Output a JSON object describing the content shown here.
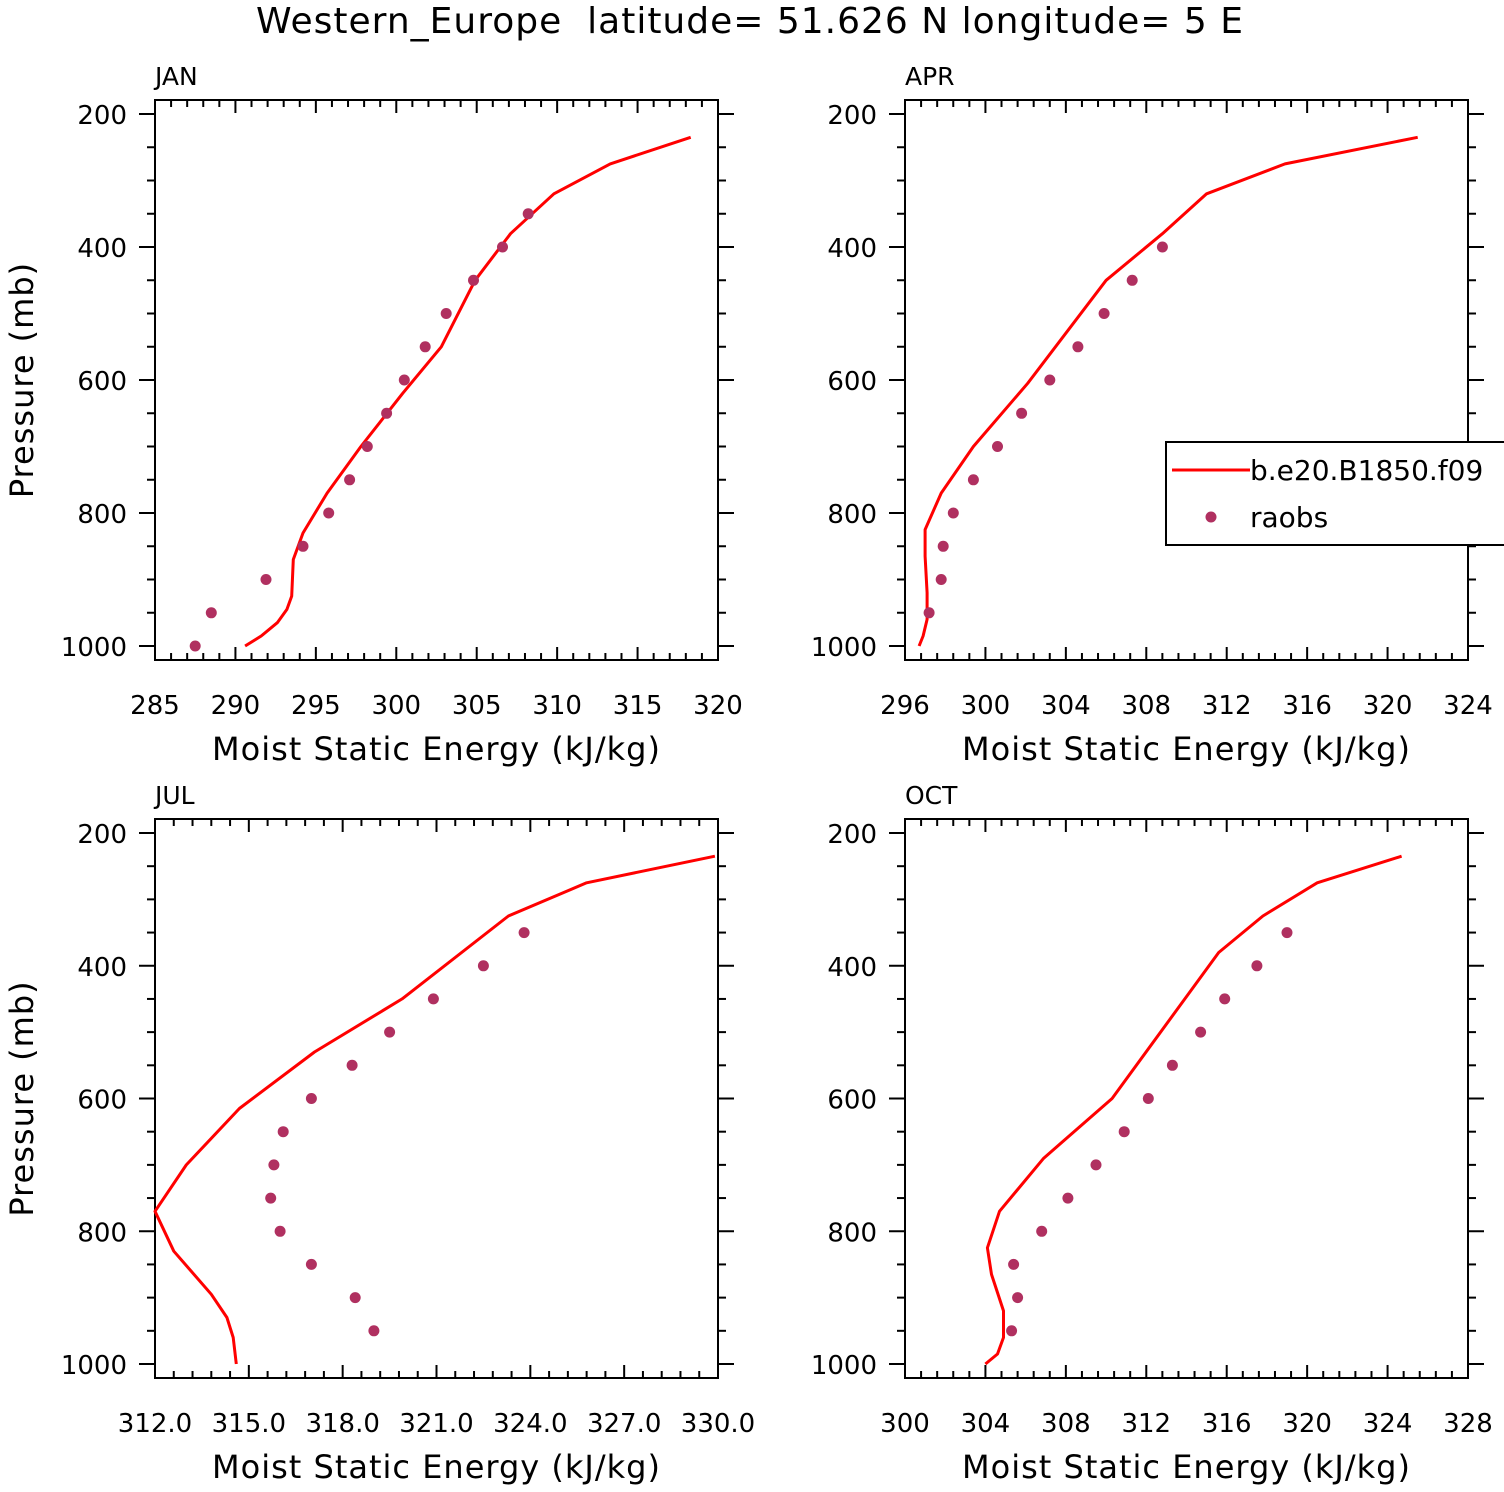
{
  "figure": {
    "title": "Western_Europe  latitude= 51.626 N longitude= 5 E"
  },
  "legend": {
    "model_label": "b.e20.B1850.f09",
    "obs_label": "raobs",
    "model_color": "#ff0000",
    "obs_color": "#b03060"
  },
  "chart_data": [
    {
      "type": "line",
      "panel_title": "JAN",
      "xlabel": "Moist Static Energy (kJ/kg)",
      "ylabel": "Pressure (mb)",
      "xlim": [
        285,
        320
      ],
      "ylim": [
        1000,
        200
      ],
      "y_inverted": true,
      "xticks": [
        "285",
        "290",
        "295",
        "300",
        "305",
        "310",
        "315",
        "320"
      ],
      "yticks": [
        "200",
        "400",
        "600",
        "800",
        "1000"
      ],
      "series": [
        {
          "name": "b.e20.B1850.f09",
          "kind": "line",
          "x": [
            290.6,
            291.6,
            292.6,
            293.2,
            293.5,
            293.6,
            294.2,
            295.7,
            297.8,
            300.4,
            302.8,
            304.9,
            307.1,
            309.8,
            313.3,
            318.3
          ],
          "y": [
            1000,
            985,
            965,
            945,
            925,
            870,
            830,
            770,
            700,
            620,
            550,
            450,
            380,
            320,
            275,
            235
          ]
        },
        {
          "name": "raobs",
          "kind": "scatter",
          "x": [
            287.5,
            288.5,
            291.9,
            294.2,
            295.8,
            297.1,
            298.2,
            299.4,
            300.5,
            301.8,
            303.1,
            304.8,
            306.6,
            308.2
          ],
          "y": [
            1000,
            950,
            900,
            850,
            800,
            750,
            700,
            650,
            600,
            550,
            500,
            450,
            400,
            350
          ]
        }
      ]
    },
    {
      "type": "line",
      "panel_title": "APR",
      "xlabel": "Moist Static Energy (kJ/kg)",
      "ylabel": "",
      "xlim": [
        296,
        324
      ],
      "ylim": [
        1000,
        200
      ],
      "y_inverted": true,
      "xticks": [
        "296",
        "300",
        "304",
        "308",
        "312",
        "316",
        "320",
        "324"
      ],
      "yticks": [
        "200",
        "400",
        "600",
        "800",
        "1000"
      ],
      "series": [
        {
          "name": "b.e20.B1850.f09",
          "kind": "line",
          "x": [
            296.7,
            296.9,
            297.1,
            297.1,
            297.0,
            297.0,
            297.8,
            299.4,
            302.1,
            306.0,
            308.8,
            311.0,
            314.9,
            321.5
          ],
          "y": [
            1000,
            985,
            960,
            920,
            865,
            825,
            770,
            700,
            605,
            450,
            380,
            320,
            275,
            235
          ]
        },
        {
          "name": "raobs",
          "kind": "scatter",
          "x": [
            297.2,
            297.8,
            297.9,
            298.4,
            299.4,
            300.6,
            301.8,
            303.2,
            304.6,
            305.9,
            307.3,
            308.8
          ],
          "y": [
            950,
            900,
            850,
            800,
            750,
            700,
            650,
            600,
            550,
            500,
            450,
            400
          ]
        }
      ]
    },
    {
      "type": "line",
      "panel_title": "JUL",
      "xlabel": "Moist Static Energy (kJ/kg)",
      "ylabel": "Pressure (mb)",
      "xlim": [
        312.0,
        330.0
      ],
      "ylim": [
        1000,
        200
      ],
      "y_inverted": true,
      "xticks": [
        "312.0",
        "315.0",
        "318.0",
        "321.0",
        "324.0",
        "327.0",
        "330.0"
      ],
      "yticks": [
        "200",
        "400",
        "600",
        "800",
        "1000"
      ],
      "series": [
        {
          "name": "b.e20.B1850.f09",
          "kind": "line",
          "x": [
            314.6,
            314.5,
            314.3,
            313.8,
            312.6,
            312.0,
            313.0,
            314.7,
            317.1,
            319.9,
            323.3,
            325.8,
            329.9
          ],
          "y": [
            1000,
            960,
            930,
            895,
            830,
            770,
            700,
            615,
            530,
            450,
            325,
            275,
            235
          ]
        },
        {
          "name": "raobs",
          "kind": "scatter",
          "x": [
            319.0,
            318.4,
            317.0,
            316.0,
            315.7,
            315.8,
            316.1,
            317.0,
            318.3,
            319.5,
            320.9,
            322.5,
            323.8
          ],
          "y": [
            950,
            900,
            850,
            800,
            750,
            700,
            650,
            600,
            550,
            500,
            450,
            400,
            350
          ]
        }
      ]
    },
    {
      "type": "line",
      "panel_title": "OCT",
      "xlabel": "Moist Static Energy (kJ/kg)",
      "ylabel": "",
      "xlim": [
        300,
        328
      ],
      "ylim": [
        1000,
        200
      ],
      "y_inverted": true,
      "xticks": [
        "300",
        "304",
        "308",
        "312",
        "316",
        "320",
        "324",
        "328"
      ],
      "yticks": [
        "200",
        "400",
        "600",
        "800",
        "1000"
      ],
      "series": [
        {
          "name": "b.e20.B1850.f09",
          "kind": "line",
          "x": [
            304.0,
            304.6,
            304.9,
            304.9,
            304.3,
            304.1,
            304.7,
            306.9,
            310.3,
            315.6,
            317.8,
            320.5,
            324.7
          ],
          "y": [
            1000,
            985,
            960,
            920,
            865,
            825,
            770,
            690,
            600,
            380,
            325,
            275,
            235
          ]
        },
        {
          "name": "raobs",
          "kind": "scatter",
          "x": [
            305.3,
            305.6,
            305.4,
            306.8,
            308.1,
            309.5,
            310.9,
            312.1,
            313.3,
            314.7,
            315.9,
            317.5,
            319.0
          ],
          "y": [
            950,
            900,
            850,
            800,
            750,
            700,
            650,
            600,
            550,
            500,
            450,
            400,
            350
          ]
        }
      ]
    }
  ]
}
